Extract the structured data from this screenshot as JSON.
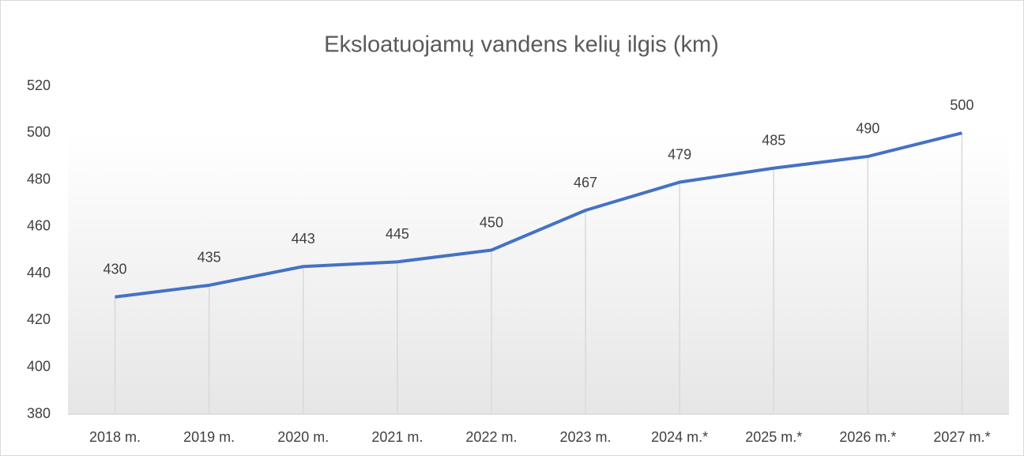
{
  "chart_data": {
    "type": "line",
    "title": "Eksloatuojamų vandens kelių ilgis (km)",
    "categories": [
      "2018 m.",
      "2019 m.",
      "2020 m.",
      "2021 m.",
      "2022 m.",
      "2023 m.",
      "2024 m.*",
      "2025 m.*",
      "2026 m.*",
      "2027 m.*"
    ],
    "series": [
      {
        "name": "Eksloatuojamų vandens kelių ilgis (km)",
        "color": "#4472c4",
        "values": [
          430,
          435,
          443,
          445,
          450,
          467,
          479,
          485,
          490,
          500
        ]
      }
    ],
    "ylim": [
      380,
      520
    ],
    "yticks": [
      380,
      400,
      420,
      440,
      460,
      480,
      500,
      520
    ],
    "drop_lines": true,
    "data_labels": true
  }
}
